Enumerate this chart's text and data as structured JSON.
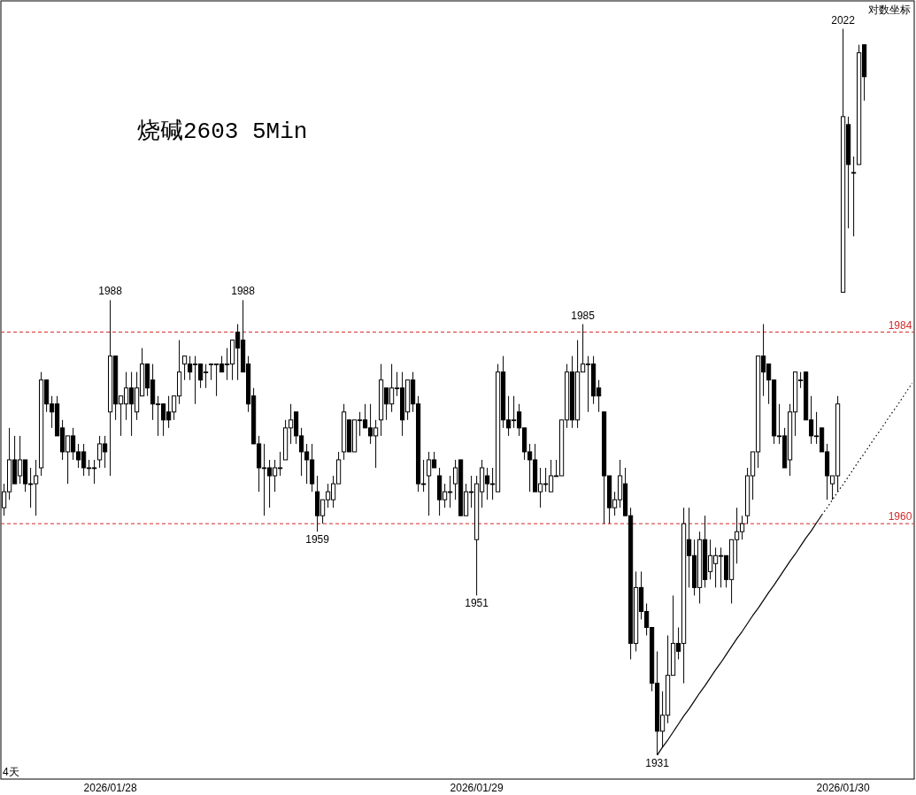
{
  "chart_data": {
    "type": "candlestick",
    "title": "烧碱2603 5Min",
    "annotations": [
      "对数坐标",
      "4天"
    ],
    "ylim": [
      1928,
      2025.5
    ],
    "categories": [
      null,
      null,
      null,
      null,
      null,
      null,
      null,
      null,
      null,
      null,
      null,
      null,
      null,
      null,
      null,
      null,
      null,
      null,
      null,
      null,
      "2026/01/28",
      null,
      null,
      null,
      null,
      null,
      null,
      null,
      null,
      null,
      null,
      null,
      null,
      null,
      null,
      null,
      null,
      null,
      null,
      null,
      null,
      null,
      null,
      null,
      null,
      null,
      null,
      null,
      null,
      null,
      null,
      null,
      null,
      null,
      null,
      null,
      null,
      null,
      null,
      null,
      null,
      null,
      null,
      null,
      null,
      null,
      null,
      null,
      null,
      null,
      null,
      null,
      null,
      null,
      null,
      null,
      null,
      null,
      null,
      null,
      null,
      null,
      null,
      null,
      null,
      null,
      null,
      null,
      null,
      "2026/01/29",
      null,
      null,
      null,
      null,
      null,
      null,
      null,
      null,
      null,
      null,
      null,
      null,
      null,
      null,
      null,
      null,
      null,
      null,
      null,
      null,
      null,
      null,
      null,
      null,
      null,
      null,
      null,
      null,
      null,
      null,
      null,
      null,
      null,
      null,
      null,
      null,
      null,
      null,
      null,
      null,
      null,
      null,
      null,
      null,
      null,
      null,
      null,
      null,
      null,
      null,
      null,
      null,
      null,
      null,
      null,
      null,
      null,
      null,
      null,
      null,
      null,
      null,
      null,
      null,
      null,
      null,
      null,
      null,
      "2026/01/30",
      null,
      null,
      null,
      null,
      null,
      null,
      null,
      null,
      null,
      null,
      null,
      null,
      null
    ],
    "ohlc": [
      [
        1962,
        1965,
        1961,
        1964
      ],
      [
        1964,
        1972,
        1963,
        1968
      ],
      [
        1968,
        1971,
        1965,
        1965
      ],
      [
        1966,
        1971,
        1965,
        1968
      ],
      [
        1968,
        1968,
        1964,
        1965
      ],
      [
        1965,
        1967,
        1962,
        1965
      ],
      [
        1965,
        1968,
        1961,
        1966
      ],
      [
        1967,
        1979,
        1966,
        1978
      ],
      [
        1978,
        1978,
        1974,
        1975
      ],
      [
        1975,
        1976,
        1972,
        1974
      ],
      [
        1975,
        1976,
        1971,
        1971
      ],
      [
        1972,
        1973,
        1968,
        1969
      ],
      [
        1969,
        1971,
        1965,
        1971
      ],
      [
        1971,
        1972,
        1968,
        1969
      ],
      [
        1969,
        1970,
        1967,
        1968
      ],
      [
        1969,
        1970,
        1966,
        1967
      ],
      [
        1967,
        1968,
        1966,
        1967
      ],
      [
        1967,
        1968,
        1965,
        1967
      ],
      [
        1968,
        1971,
        1967,
        1970
      ],
      [
        1970,
        1971,
        1967,
        1969
      ],
      [
        1974,
        1988,
        1966,
        1981
      ],
      [
        1981,
        1981,
        1973,
        1975
      ],
      [
        1975,
        1976,
        1971,
        1976
      ],
      [
        1975,
        1979,
        1973,
        1977
      ],
      [
        1977,
        1979,
        1971,
        1975
      ],
      [
        1974,
        1979,
        1973,
        1977
      ],
      [
        1976,
        1982,
        1976,
        1980
      ],
      [
        1980,
        1980,
        1976,
        1977
      ],
      [
        1978,
        1980,
        1973,
        1975
      ],
      [
        1975,
        1976,
        1971,
        1975
      ],
      [
        1975,
        1975,
        1971,
        1973
      ],
      [
        1974,
        1976,
        1972,
        1973
      ],
      [
        1974,
        1976,
        1973,
        1976
      ],
      [
        1976,
        1983,
        1975,
        1979
      ],
      [
        1980,
        1981,
        1978,
        1981
      ],
      [
        1980,
        1981,
        1978,
        1979
      ],
      [
        1980,
        1981,
        1975,
        1980
      ],
      [
        1980,
        1980,
        1977,
        1978
      ],
      [
        1979,
        1980,
        1977,
        1979
      ],
      [
        1980,
        1980,
        1978,
        1980
      ],
      [
        1980,
        1980,
        1976,
        1980
      ],
      [
        1980,
        1981,
        1979,
        1979
      ],
      [
        1980,
        1982,
        1978,
        1980
      ],
      [
        1980,
        1983,
        1978,
        1983
      ],
      [
        1984,
        1985,
        1978,
        1982
      ],
      [
        1983,
        1988,
        1979,
        1979
      ],
      [
        1980,
        1981,
        1974,
        1975
      ],
      [
        1976,
        1977,
        1970,
        1970
      ],
      [
        1970,
        1971,
        1964,
        1967
      ],
      [
        1967,
        1970,
        1961,
        1967
      ],
      [
        1967,
        1968,
        1962,
        1966
      ],
      [
        1966,
        1968,
        1964,
        1967
      ],
      [
        1967,
        1969,
        1966,
        1967
      ],
      [
        1968,
        1973,
        1968,
        1972
      ],
      [
        1972,
        1975,
        1970,
        1973
      ],
      [
        1974,
        1974,
        1970,
        1971
      ],
      [
        1971,
        1972,
        1966,
        1969
      ],
      [
        1969,
        1970,
        1965,
        1968
      ],
      [
        1968,
        1970,
        1964,
        1965
      ],
      [
        1964,
        1966,
        1959,
        1961
      ],
      [
        1961,
        1963,
        1960,
        1963
      ],
      [
        1963,
        1965,
        1962,
        1964
      ],
      [
        1963,
        1966,
        1962,
        1965
      ],
      [
        1965,
        1969,
        1965,
        1968
      ],
      [
        1969,
        1975,
        1968,
        1974
      ],
      [
        1973,
        1973,
        1969,
        1969
      ],
      [
        1969,
        1973,
        1969,
        1973
      ],
      [
        1973,
        1974,
        1971,
        1973
      ],
      [
        1973,
        1975,
        1972,
        1972
      ],
      [
        1972,
        1975,
        1970,
        1971
      ],
      [
        1971,
        1973,
        1967,
        1972
      ],
      [
        1973,
        1980,
        1971,
        1978
      ],
      [
        1977,
        1977,
        1973,
        1975
      ],
      [
        1975,
        1980,
        1974,
        1977
      ],
      [
        1977,
        1979,
        1976,
        1977
      ],
      [
        1977,
        1979,
        1971,
        1973
      ],
      [
        1974,
        1978,
        1973,
        1978
      ],
      [
        1978,
        1979,
        1974,
        1975
      ],
      [
        1975,
        1976,
        1964,
        1965
      ],
      [
        1965,
        1968,
        1964,
        1965
      ],
      [
        1966,
        1969,
        1961,
        1968
      ],
      [
        1968,
        1969,
        1967,
        1967
      ],
      [
        1966,
        1967,
        1961,
        1963
      ],
      [
        1963,
        1965,
        1962,
        1964
      ],
      [
        1964,
        1966,
        1962,
        1964
      ],
      [
        1965,
        1968,
        1963,
        1967
      ],
      [
        1968,
        1968,
        1961,
        1961
      ],
      [
        1961,
        1965,
        1961,
        1964
      ],
      [
        1964,
        1966,
        1962,
        1964
      ],
      [
        1958,
        1966,
        1951,
        1965
      ],
      [
        1964,
        1968,
        1962,
        1967
      ],
      [
        1966,
        1967,
        1963,
        1965
      ],
      [
        1965,
        1967,
        1963,
        1965
      ],
      [
        1964,
        1980,
        1964,
        1979
      ],
      [
        1979,
        1981,
        1972,
        1973
      ],
      [
        1973,
        1976,
        1971,
        1972
      ],
      [
        1973,
        1976,
        1972,
        1973
      ],
      [
        1974,
        1975,
        1971,
        1972
      ],
      [
        1972,
        1972,
        1968,
        1969
      ],
      [
        1969,
        1970,
        1964,
        1968
      ],
      [
        1968,
        1970,
        1964,
        1964
      ],
      [
        1964,
        1967,
        1962,
        1965
      ],
      [
        1965,
        1967,
        1964,
        1965
      ],
      [
        1964,
        1968,
        1964,
        1966
      ],
      [
        1966,
        1968,
        1966,
        1966
      ],
      [
        1966,
        1973,
        1966,
        1973
      ],
      [
        1973,
        1980,
        1972,
        1979
      ],
      [
        1979,
        1981,
        1972,
        1973
      ],
      [
        1973,
        1983,
        1972,
        1979
      ],
      [
        1979,
        1985,
        1979,
        1980
      ],
      [
        1980,
        1981,
        1974,
        1980
      ],
      [
        1980,
        1981,
        1975,
        1976
      ],
      [
        1977,
        1978,
        1974,
        1976
      ],
      [
        1974,
        1974,
        1960,
        1966
      ],
      [
        1966,
        1966,
        1960,
        1962
      ],
      [
        1962,
        1964,
        1961,
        1963
      ],
      [
        1963,
        1968,
        1962,
        1966
      ],
      [
        1965,
        1967,
        1961,
        1961
      ],
      [
        1961,
        1962,
        1943,
        1945
      ],
      [
        1945,
        1954,
        1944,
        1952
      ],
      [
        1952,
        1954,
        1948,
        1949
      ],
      [
        1949,
        1950,
        1946,
        1947
      ],
      [
        1947,
        1947,
        1939,
        1940
      ],
      [
        1940,
        1944,
        1931,
        1934
      ],
      [
        1934,
        1939,
        1932,
        1936
      ],
      [
        1936,
        1946,
        1935,
        1941
      ],
      [
        1941,
        1951,
        1941,
        1945
      ],
      [
        1945,
        1947,
        1943,
        1944
      ],
      [
        1945,
        1962,
        1940,
        1960
      ],
      [
        1958,
        1962,
        1952,
        1956
      ],
      [
        1956,
        1958,
        1951,
        1952
      ],
      [
        1952,
        1959,
        1950,
        1958
      ],
      [
        1958,
        1961,
        1952,
        1953
      ],
      [
        1954,
        1958,
        1953,
        1956
      ],
      [
        1955,
        1957,
        1952,
        1956
      ],
      [
        1956,
        1957,
        1952,
        1956
      ],
      [
        1956,
        1956,
        1952,
        1953
      ],
      [
        1953,
        1958,
        1950,
        1958
      ],
      [
        1958,
        1962,
        1955,
        1959
      ],
      [
        1959,
        1961,
        1958,
        1960
      ],
      [
        1961,
        1967,
        1960,
        1966
      ],
      [
        1966,
        1969,
        1963,
        1969
      ],
      [
        1969,
        1981,
        1967,
        1981
      ],
      [
        1981,
        1985,
        1976,
        1979
      ],
      [
        1980,
        1980,
        1975,
        1978
      ],
      [
        1978,
        1978,
        1970,
        1971
      ],
      [
        1971,
        1975,
        1970,
        1971
      ],
      [
        1971,
        1972,
        1967,
        1967
      ],
      [
        1968,
        1975,
        1966,
        1974
      ],
      [
        1974,
        1979,
        1971,
        1979
      ],
      [
        1978,
        1979,
        1977,
        1978
      ],
      [
        1979,
        1979,
        1973,
        1973
      ],
      [
        1973,
        1976,
        1970,
        1971
      ],
      [
        1971,
        1974,
        1970,
        1971
      ],
      [
        1972,
        1972,
        1969,
        1969
      ],
      [
        1969,
        1970,
        1963,
        1966
      ],
      [
        1965,
        1966,
        1963,
        1966
      ],
      [
        1966,
        1976,
        1964,
        1975
      ],
      [
        1989,
        2022,
        1989,
        2011
      ],
      [
        2010,
        2011,
        1997,
        2005
      ],
      [
        2004,
        2006,
        1996,
        2004
      ],
      [
        2005,
        2020,
        2005,
        2019
      ],
      [
        2020,
        2020,
        2013,
        2016
      ],
      null,
      null,
      null,
      null,
      null,
      null,
      null,
      null,
      null
    ],
    "value_labels": [
      null,
      null,
      null,
      null,
      null,
      null,
      null,
      null,
      null,
      null,
      null,
      null,
      null,
      null,
      null,
      null,
      null,
      null,
      null,
      null,
      "1988",
      null,
      null,
      null,
      null,
      null,
      null,
      null,
      null,
      null,
      null,
      null,
      null,
      null,
      null,
      null,
      null,
      null,
      null,
      null,
      null,
      null,
      null,
      null,
      null,
      "1988",
      null,
      null,
      null,
      null,
      null,
      null,
      null,
      null,
      null,
      null,
      null,
      null,
      null,
      "1959",
      null,
      null,
      null,
      null,
      null,
      null,
      null,
      null,
      null,
      null,
      null,
      null,
      null,
      null,
      null,
      null,
      null,
      null,
      null,
      null,
      null,
      null,
      null,
      null,
      null,
      null,
      null,
      null,
      null,
      "1951",
      null,
      null,
      null,
      null,
      null,
      null,
      null,
      null,
      null,
      null,
      null,
      null,
      null,
      null,
      null,
      null,
      null,
      null,
      null,
      "1985",
      null,
      null,
      null,
      null,
      null,
      null,
      null,
      null,
      null,
      null,
      null,
      null,
      null,
      "1931",
      null,
      null,
      null,
      null,
      null,
      null,
      null,
      null,
      null,
      null,
      null,
      null,
      null,
      null,
      null,
      null,
      null,
      null,
      null,
      null,
      null,
      null,
      null,
      null,
      null,
      null,
      null,
      null,
      null,
      null,
      null,
      null,
      null,
      null,
      "2022",
      null,
      null,
      null,
      null,
      null,
      null,
      null,
      null,
      null,
      null,
      null,
      null,
      null
    ],
    "ref_lines": [
      {
        "axis": "y",
        "value": 1984,
        "label": "1984",
        "color": "#d42a2a",
        "line_style": "dashed"
      },
      {
        "axis": "y",
        "value": 1960,
        "label": "1960",
        "color": "#d42a2a",
        "line_style": "dashed"
      }
    ],
    "series": [
      {
        "type": "line",
        "color": "#000000",
        "line_style": "solid",
        "values": [
          null,
          null,
          null,
          null,
          null,
          null,
          null,
          null,
          null,
          null,
          null,
          null,
          null,
          null,
          null,
          null,
          null,
          null,
          null,
          null,
          null,
          null,
          null,
          null,
          null,
          null,
          null,
          null,
          null,
          null,
          null,
          null,
          null,
          null,
          null,
          null,
          null,
          null,
          null,
          null,
          null,
          null,
          null,
          null,
          null,
          null,
          null,
          null,
          null,
          null,
          null,
          null,
          null,
          null,
          null,
          null,
          null,
          null,
          null,
          null,
          null,
          null,
          null,
          null,
          null,
          null,
          null,
          null,
          null,
          null,
          null,
          null,
          null,
          null,
          null,
          null,
          null,
          null,
          null,
          null,
          null,
          null,
          null,
          null,
          null,
          null,
          null,
          null,
          null,
          null,
          null,
          null,
          null,
          null,
          null,
          null,
          null,
          null,
          null,
          null,
          null,
          null,
          null,
          null,
          null,
          null,
          null,
          null,
          null,
          null,
          null,
          null,
          null,
          null,
          null,
          null,
          null,
          null,
          null,
          null,
          null,
          null,
          null,
          1931.0,
          1932.0,
          1932.9,
          1933.9,
          1934.9,
          1935.9,
          1936.8,
          1937.8,
          1938.8,
          1939.7,
          1940.7,
          1941.7,
          1942.6,
          1943.6,
          1944.6,
          1945.6,
          1946.5,
          1947.5,
          1948.5,
          1949.4,
          1950.4,
          1951.4,
          1952.3,
          1953.3,
          1954.3,
          1955.3,
          1956.2,
          1957.2,
          1958.2,
          1959.1,
          1960.1,
          1961.1,
          null,
          null,
          null,
          null,
          null,
          null,
          null,
          null,
          null,
          null,
          null,
          null,
          null,
          null,
          null,
          null,
          null
        ]
      },
      {
        "type": "line",
        "color": "#000000",
        "line_style": "dotted",
        "values": [
          null,
          null,
          null,
          null,
          null,
          null,
          null,
          null,
          null,
          null,
          null,
          null,
          null,
          null,
          null,
          null,
          null,
          null,
          null,
          null,
          null,
          null,
          null,
          null,
          null,
          null,
          null,
          null,
          null,
          null,
          null,
          null,
          null,
          null,
          null,
          null,
          null,
          null,
          null,
          null,
          null,
          null,
          null,
          null,
          null,
          null,
          null,
          null,
          null,
          null,
          null,
          null,
          null,
          null,
          null,
          null,
          null,
          null,
          null,
          null,
          null,
          null,
          null,
          null,
          null,
          null,
          null,
          null,
          null,
          null,
          null,
          null,
          null,
          null,
          null,
          null,
          null,
          null,
          null,
          null,
          null,
          null,
          null,
          null,
          null,
          null,
          null,
          null,
          null,
          null,
          null,
          null,
          null,
          null,
          null,
          null,
          null,
          null,
          null,
          null,
          null,
          null,
          null,
          null,
          null,
          null,
          null,
          null,
          null,
          null,
          null,
          null,
          null,
          null,
          null,
          null,
          null,
          null,
          null,
          null,
          null,
          null,
          null,
          null,
          null,
          null,
          null,
          null,
          null,
          null,
          null,
          null,
          null,
          null,
          null,
          null,
          null,
          null,
          null,
          null,
          null,
          null,
          null,
          null,
          null,
          null,
          null,
          null,
          null,
          null,
          null,
          null,
          null,
          null,
          1961.1,
          1962.0,
          1963.0,
          1964.0,
          1964.9,
          1965.9,
          1966.9,
          1967.9,
          1968.8,
          1969.8,
          1970.8,
          1971.7,
          1972.7,
          1973.7,
          1974.6,
          1975.6,
          1976.6,
          1977.6
        ]
      }
    ]
  }
}
